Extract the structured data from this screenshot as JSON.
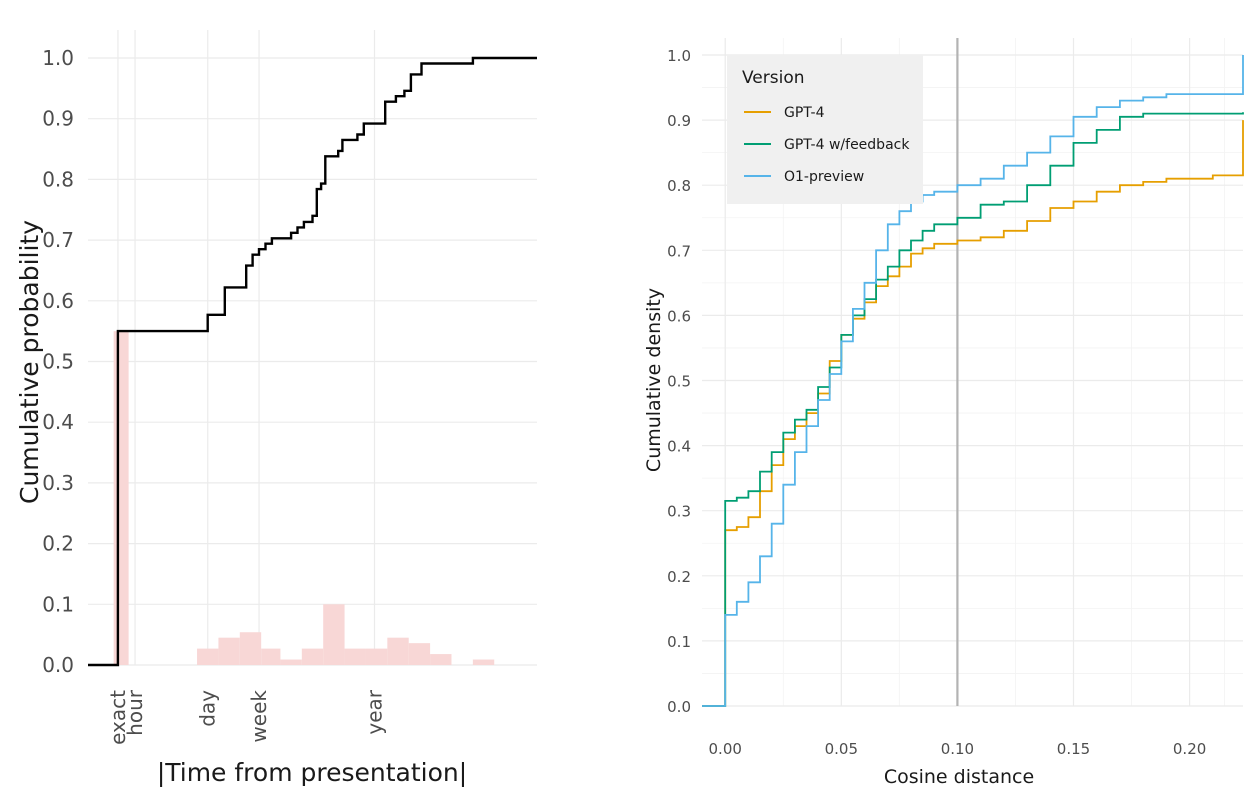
{
  "chart_data": [
    {
      "type": "step",
      "title": "",
      "xlabel": "|Time from presentation|",
      "ylabel": "Cumulative probability",
      "xscale": "log (custom labeled breaks)",
      "x_range": [
        -1.0,
        20.0
      ],
      "ylim": [
        0,
        1.0
      ],
      "y_ticks": [
        0.0,
        0.1,
        0.2,
        0.3,
        0.4,
        0.5,
        0.6,
        0.7,
        0.8,
        0.9,
        1.0
      ],
      "y_tick_labels": [
        "0.0",
        "0.1",
        "0.2",
        "0.3",
        "0.4",
        "0.5",
        "0.6",
        "0.7",
        "0.8",
        "0.9",
        "1.0"
      ],
      "x_ticks": [
        {
          "label": "exact",
          "value": 0.4
        },
        {
          "label": "hour",
          "value": 1.2
        },
        {
          "label": "day",
          "value": 4.6
        },
        {
          "label": "week",
          "value": 7.0
        },
        {
          "label": "year",
          "value": 12.4
        }
      ],
      "series": [
        {
          "name": "cumulative",
          "color": "#000000",
          "points": [
            [
              -1.0,
              0.0
            ],
            [
              0.4,
              0.0
            ],
            [
              0.4,
              0.55
            ],
            [
              4.6,
              0.55
            ],
            [
              4.6,
              0.577
            ],
            [
              5.4,
              0.577
            ],
            [
              5.4,
              0.622
            ],
            [
              6.4,
              0.622
            ],
            [
              6.4,
              0.658
            ],
            [
              6.7,
              0.658
            ],
            [
              6.7,
              0.676
            ],
            [
              7.0,
              0.676
            ],
            [
              7.0,
              0.685
            ],
            [
              7.3,
              0.685
            ],
            [
              7.3,
              0.694
            ],
            [
              7.6,
              0.694
            ],
            [
              7.6,
              0.703
            ],
            [
              8.5,
              0.703
            ],
            [
              8.5,
              0.712
            ],
            [
              8.8,
              0.712
            ],
            [
              8.8,
              0.721
            ],
            [
              9.1,
              0.721
            ],
            [
              9.1,
              0.73
            ],
            [
              9.5,
              0.73
            ],
            [
              9.5,
              0.74
            ],
            [
              9.7,
              0.74
            ],
            [
              9.7,
              0.784
            ],
            [
              9.9,
              0.784
            ],
            [
              9.9,
              0.793
            ],
            [
              10.1,
              0.793
            ],
            [
              10.1,
              0.838
            ],
            [
              10.7,
              0.838
            ],
            [
              10.7,
              0.847
            ],
            [
              10.9,
              0.847
            ],
            [
              10.9,
              0.865
            ],
            [
              11.6,
              0.865
            ],
            [
              11.6,
              0.874
            ],
            [
              11.9,
              0.874
            ],
            [
              11.9,
              0.892
            ],
            [
              12.9,
              0.892
            ],
            [
              12.9,
              0.928
            ],
            [
              13.4,
              0.928
            ],
            [
              13.4,
              0.937
            ],
            [
              13.8,
              0.937
            ],
            [
              13.8,
              0.946
            ],
            [
              14.1,
              0.946
            ],
            [
              14.1,
              0.973
            ],
            [
              14.6,
              0.973
            ],
            [
              14.6,
              0.991
            ],
            [
              17.0,
              0.991
            ],
            [
              17.0,
              1.0
            ],
            [
              20.0,
              1.0
            ]
          ]
        }
      ],
      "histogram": {
        "color": "#f8d7d6",
        "bins": [
          {
            "x0": 0.2,
            "x1": 0.9,
            "value": 0.55
          },
          {
            "x0": 4.1,
            "x1": 5.1,
            "value": 0.027
          },
          {
            "x0": 5.1,
            "x1": 6.1,
            "value": 0.045
          },
          {
            "x0": 6.1,
            "x1": 7.1,
            "value": 0.054
          },
          {
            "x0": 7.1,
            "x1": 8.0,
            "value": 0.027
          },
          {
            "x0": 8.0,
            "x1": 9.0,
            "value": 0.009
          },
          {
            "x0": 9.0,
            "x1": 10.0,
            "value": 0.027
          },
          {
            "x0": 10.0,
            "x1": 11.0,
            "value": 0.1
          },
          {
            "x0": 11.0,
            "x1": 12.0,
            "value": 0.027
          },
          {
            "x0": 12.0,
            "x1": 13.0,
            "value": 0.027
          },
          {
            "x0": 13.0,
            "x1": 14.0,
            "value": 0.045
          },
          {
            "x0": 14.0,
            "x1": 15.0,
            "value": 0.036
          },
          {
            "x0": 15.0,
            "x1": 16.0,
            "value": 0.018
          },
          {
            "x0": 17.0,
            "x1": 18.0,
            "value": 0.009
          }
        ]
      }
    },
    {
      "type": "step",
      "title": "",
      "xlabel": "Cosine distance",
      "ylabel": "Cumulative density",
      "xlim": [
        -0.01,
        0.223
      ],
      "ylim": [
        0,
        1.0
      ],
      "x_ticks": [
        0.0,
        0.05,
        0.1,
        0.15,
        0.2
      ],
      "x_tick_labels": [
        "0.00",
        "0.05",
        "0.10",
        "0.15",
        "0.20"
      ],
      "y_ticks": [
        0.0,
        0.1,
        0.2,
        0.3,
        0.4,
        0.5,
        0.6,
        0.7,
        0.8,
        0.9,
        1.0
      ],
      "y_tick_labels": [
        "0.0",
        "0.1",
        "0.2",
        "0.3",
        "0.4",
        "0.5",
        "0.6",
        "0.7",
        "0.8",
        "0.9",
        "1.0"
      ],
      "vline": 0.1,
      "vline_color": "#b3b3b3",
      "legend": {
        "title": "Version",
        "position": "top-left",
        "background": "#f0f0f0"
      },
      "series": [
        {
          "name": "GPT-4",
          "color": "#E69F00",
          "points": [
            [
              -0.01,
              0.0
            ],
            [
              0.0,
              0.0
            ],
            [
              0.0,
              0.27
            ],
            [
              0.005,
              0.275
            ],
            [
              0.01,
              0.29
            ],
            [
              0.015,
              0.33
            ],
            [
              0.02,
              0.37
            ],
            [
              0.025,
              0.41
            ],
            [
              0.03,
              0.43
            ],
            [
              0.035,
              0.45
            ],
            [
              0.04,
              0.48
            ],
            [
              0.045,
              0.53
            ],
            [
              0.05,
              0.57
            ],
            [
              0.055,
              0.595
            ],
            [
              0.06,
              0.62
            ],
            [
              0.065,
              0.645
            ],
            [
              0.07,
              0.66
            ],
            [
              0.075,
              0.675
            ],
            [
              0.08,
              0.695
            ],
            [
              0.085,
              0.703
            ],
            [
              0.09,
              0.71
            ],
            [
              0.1,
              0.715
            ],
            [
              0.11,
              0.72
            ],
            [
              0.12,
              0.73
            ],
            [
              0.13,
              0.745
            ],
            [
              0.14,
              0.765
            ],
            [
              0.15,
              0.775
            ],
            [
              0.16,
              0.79
            ],
            [
              0.17,
              0.8
            ],
            [
              0.18,
              0.805
            ],
            [
              0.19,
              0.81
            ],
            [
              0.2,
              0.81
            ],
            [
              0.21,
              0.815
            ],
            [
              0.223,
              0.818
            ],
            [
              0.223,
              0.9
            ]
          ]
        },
        {
          "name": "GPT-4 w/feedback",
          "color": "#009E73",
          "points": [
            [
              -0.01,
              0.0
            ],
            [
              0.0,
              0.0
            ],
            [
              0.0,
              0.14
            ],
            [
              0.0,
              0.315
            ],
            [
              0.005,
              0.32
            ],
            [
              0.01,
              0.33
            ],
            [
              0.015,
              0.36
            ],
            [
              0.02,
              0.39
            ],
            [
              0.025,
              0.42
            ],
            [
              0.03,
              0.44
            ],
            [
              0.035,
              0.455
            ],
            [
              0.04,
              0.49
            ],
            [
              0.045,
              0.52
            ],
            [
              0.05,
              0.57
            ],
            [
              0.055,
              0.6
            ],
            [
              0.06,
              0.625
            ],
            [
              0.065,
              0.655
            ],
            [
              0.07,
              0.675
            ],
            [
              0.075,
              0.7
            ],
            [
              0.08,
              0.715
            ],
            [
              0.085,
              0.73
            ],
            [
              0.09,
              0.74
            ],
            [
              0.1,
              0.75
            ],
            [
              0.11,
              0.77
            ],
            [
              0.12,
              0.775
            ],
            [
              0.13,
              0.8
            ],
            [
              0.14,
              0.83
            ],
            [
              0.15,
              0.865
            ],
            [
              0.16,
              0.885
            ],
            [
              0.17,
              0.905
            ],
            [
              0.18,
              0.91
            ],
            [
              0.2,
              0.91
            ],
            [
              0.223,
              0.912
            ]
          ]
        },
        {
          "name": "O1-preview",
          "color": "#56B4E9",
          "points": [
            [
              -0.01,
              0.0
            ],
            [
              0.0,
              0.0
            ],
            [
              0.0,
              0.14
            ],
            [
              0.005,
              0.16
            ],
            [
              0.01,
              0.19
            ],
            [
              0.015,
              0.23
            ],
            [
              0.02,
              0.28
            ],
            [
              0.025,
              0.34
            ],
            [
              0.03,
              0.39
            ],
            [
              0.035,
              0.43
            ],
            [
              0.04,
              0.47
            ],
            [
              0.045,
              0.51
            ],
            [
              0.05,
              0.56
            ],
            [
              0.055,
              0.61
            ],
            [
              0.06,
              0.65
            ],
            [
              0.065,
              0.7
            ],
            [
              0.07,
              0.74
            ],
            [
              0.075,
              0.76
            ],
            [
              0.08,
              0.775
            ],
            [
              0.085,
              0.785
            ],
            [
              0.09,
              0.79
            ],
            [
              0.1,
              0.8
            ],
            [
              0.11,
              0.81
            ],
            [
              0.12,
              0.83
            ],
            [
              0.13,
              0.85
            ],
            [
              0.14,
              0.875
            ],
            [
              0.15,
              0.905
            ],
            [
              0.16,
              0.92
            ],
            [
              0.17,
              0.93
            ],
            [
              0.18,
              0.935
            ],
            [
              0.19,
              0.94
            ],
            [
              0.2,
              0.94
            ],
            [
              0.223,
              0.94
            ],
            [
              0.223,
              1.0
            ]
          ]
        }
      ]
    }
  ]
}
